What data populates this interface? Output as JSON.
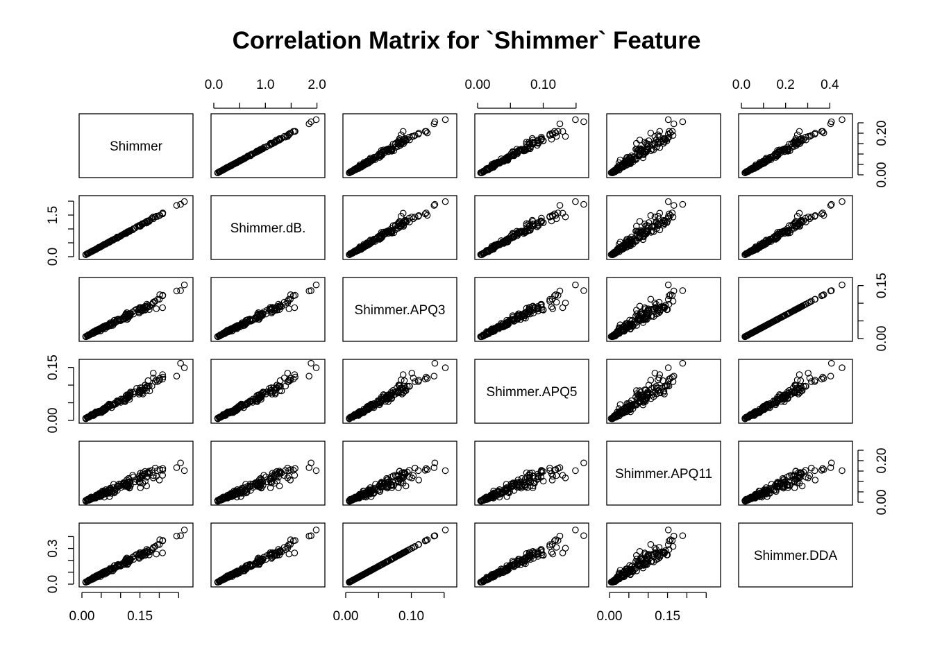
{
  "title": "Correlation Matrix for `Shimmer` Feature",
  "chart_data": {
    "type": "scatter",
    "kind": "pairs",
    "title": "Correlation Matrix for `Shimmer` Feature",
    "variables": [
      {
        "name": "Shimmer",
        "range": [
          0.0,
          0.28
        ],
        "ticks": [
          0.0,
          0.05,
          0.1,
          0.15,
          0.2,
          0.25
        ],
        "labels": [
          [
            "0.00",
            0.0
          ],
          [
            "0.15",
            0.15
          ]
        ],
        "right_labels": [
          [
            "0.00",
            0.0
          ],
          [
            "0.20",
            0.2
          ]
        ]
      },
      {
        "name": "Shimmer.dB.",
        "range": [
          0.0,
          2.1
        ],
        "ticks": [
          0.0,
          0.5,
          1.0,
          1.5,
          2.0
        ],
        "labels": [
          [
            "0.0",
            0.0
          ],
          [
            "1.0",
            1.0
          ],
          [
            "2.0",
            2.0
          ]
        ],
        "left_labels": [
          [
            "0.0",
            0.0
          ],
          [
            "1.5",
            1.5
          ]
        ]
      },
      {
        "name": "Shimmer.APQ3",
        "range": [
          0.0,
          0.165
        ],
        "ticks": [
          0.0,
          0.05,
          0.1,
          0.15
        ],
        "labels": [
          [
            "0.00",
            0.0
          ],
          [
            "0.10",
            0.1
          ]
        ],
        "right_labels": [
          [
            "0.00",
            0.0
          ],
          [
            "0.15",
            0.15
          ]
        ]
      },
      {
        "name": "Shimmer.APQ5",
        "range": [
          0.0,
          0.165
        ],
        "ticks": [
          0.0,
          0.05,
          0.1,
          0.15
        ],
        "labels": [
          [
            "0.00",
            0.0
          ],
          [
            "0.10",
            0.1
          ]
        ],
        "left_labels": [
          [
            "0.00",
            0.0
          ],
          [
            "0.15",
            0.15
          ]
        ]
      },
      {
        "name": "Shimmer.APQ11",
        "range": [
          0.0,
          0.28
        ],
        "ticks": [
          0.0,
          0.05,
          0.1,
          0.15,
          0.2,
          0.25
        ],
        "labels": [
          [
            "0.00",
            0.0
          ],
          [
            "0.15",
            0.15
          ]
        ],
        "right_labels": [
          [
            "0.00",
            0.0
          ],
          [
            "0.20",
            0.2
          ]
        ]
      },
      {
        "name": "Shimmer.DDA",
        "range": [
          0.0,
          0.49
        ],
        "ticks": [
          0.0,
          0.1,
          0.2,
          0.3,
          0.4
        ],
        "labels": [
          [
            "0.0",
            0.0
          ],
          [
            "0.2",
            0.2
          ],
          [
            "0.4",
            0.4
          ]
        ],
        "left_labels": [
          [
            "0.0",
            0.0
          ],
          [
            "0.3",
            0.3
          ]
        ]
      }
    ],
    "slopes": [
      1.0,
      7.5,
      0.55,
      0.56,
      0.75,
      1.65
    ],
    "noise": [
      0.0,
      0.015,
      0.07,
      0.09,
      0.17,
      0.07
    ],
    "points_per_panel": 170,
    "grid": false,
    "legend": "none"
  }
}
